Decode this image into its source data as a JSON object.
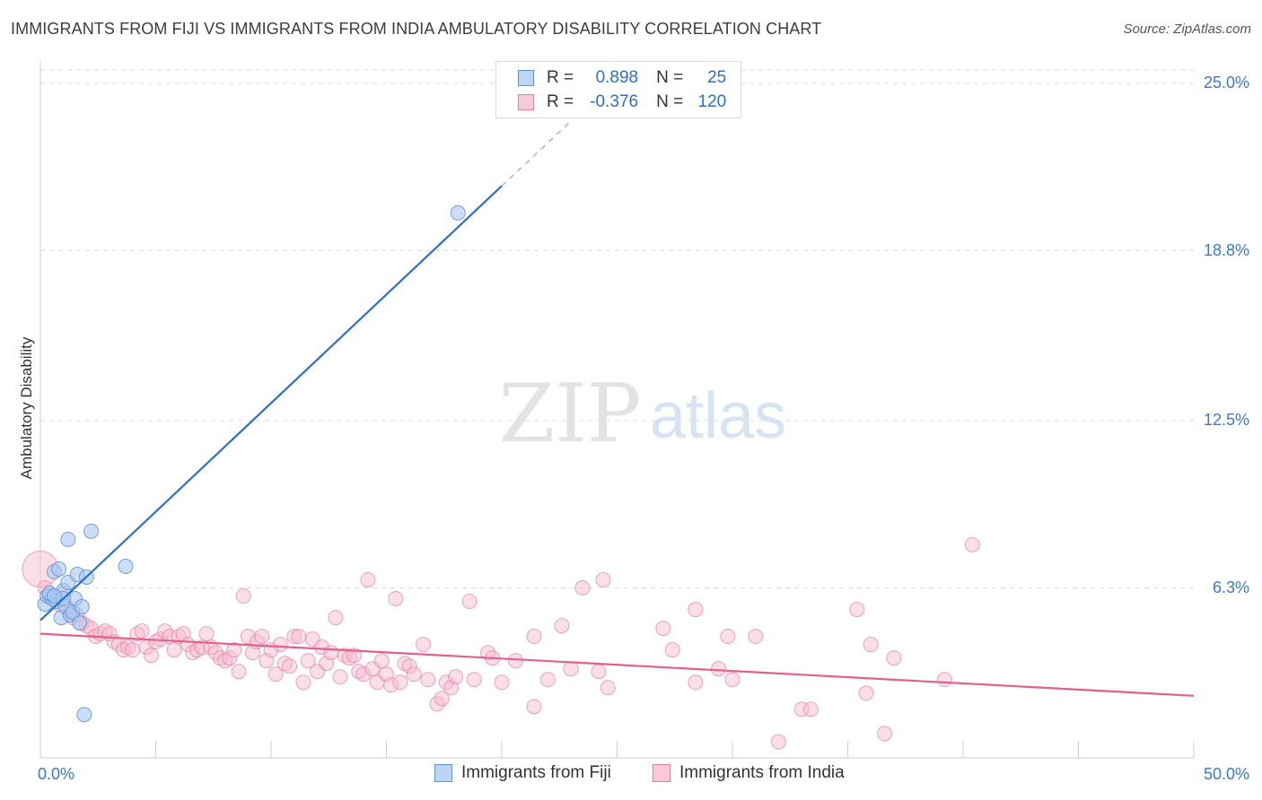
{
  "title": "IMMIGRANTS FROM FIJI VS IMMIGRANTS FROM INDIA AMBULATORY DISABILITY CORRELATION CHART",
  "source": "Source: ZipAtlas.com",
  "watermark": {
    "zip": "ZIP",
    "atlas": "atlas"
  },
  "colors": {
    "fiji_fill": "#a9c8f0",
    "fiji_stroke": "#5b93d8",
    "fiji_line": "#2e6fce",
    "india_fill": "#f6b8cc",
    "india_stroke": "#e67fa1",
    "india_line": "#e0608e",
    "value_text": "#2e6fce",
    "grid": "#dcdcdc"
  },
  "legend": {
    "rows": [
      {
        "r_label": "R =",
        "r_value": "0.898",
        "n_label": "N =",
        "n_value": "25"
      },
      {
        "r_label": "R =",
        "r_value": "-0.376",
        "n_label": "N =",
        "n_value": "120"
      }
    ]
  },
  "bottom_legend": {
    "fiji": "Immigrants from Fiji",
    "india": "Immigrants from India"
  },
  "chart_data": {
    "type": "scatter",
    "title": "IMMIGRANTS FROM FIJI VS IMMIGRANTS FROM INDIA AMBULATORY DISABILITY CORRELATION CHART",
    "xlabel": "",
    "ylabel": "Ambulatory Disability",
    "xlim": [
      0,
      50
    ],
    "ylim": [
      0,
      25.5
    ],
    "x_tick_labels": [
      "0.0%",
      "50.0%"
    ],
    "y_ticks": [
      6.3,
      12.5,
      18.8,
      25.0
    ],
    "y_tick_labels": [
      "6.3%",
      "12.5%",
      "18.8%",
      "25.0%"
    ],
    "grid": true,
    "legend_position": "top-center",
    "series": [
      {
        "name": "Immigrants from Fiji",
        "r": 0.898,
        "n": 25,
        "trend": {
          "x0": 0.0,
          "y0": 5.1,
          "x1": 20.0,
          "y1": 21.2,
          "dash_x1": 23.0,
          "dash_y1": 23.6
        },
        "points": [
          [
            0.2,
            5.7
          ],
          [
            0.3,
            6.0
          ],
          [
            0.5,
            5.9
          ],
          [
            0.6,
            6.9
          ],
          [
            0.7,
            5.8
          ],
          [
            0.8,
            7.0
          ],
          [
            0.9,
            5.2
          ],
          [
            1.0,
            6.2
          ],
          [
            1.1,
            5.6
          ],
          [
            1.2,
            6.5
          ],
          [
            1.3,
            5.3
          ],
          [
            1.4,
            5.4
          ],
          [
            1.5,
            5.9
          ],
          [
            1.6,
            6.8
          ],
          [
            1.7,
            5.0
          ],
          [
            1.8,
            5.6
          ],
          [
            2.0,
            6.7
          ],
          [
            1.2,
            8.1
          ],
          [
            2.2,
            8.4
          ],
          [
            3.7,
            7.1
          ],
          [
            18.1,
            20.2
          ],
          [
            1.9,
            1.6
          ],
          [
            0.4,
            6.1
          ],
          [
            1.0,
            5.9
          ],
          [
            0.6,
            6.0
          ]
        ]
      },
      {
        "name": "Immigrants from India",
        "r": -0.376,
        "n": 120,
        "trend": {
          "x0": 0.0,
          "y0": 4.6,
          "x1": 50.0,
          "y1": 2.3
        },
        "points": [
          [
            0.0,
            7.0
          ],
          [
            0.2,
            6.3
          ],
          [
            0.4,
            6.0
          ],
          [
            0.6,
            6.0
          ],
          [
            0.8,
            5.7
          ],
          [
            1.0,
            6.1
          ],
          [
            1.2,
            5.5
          ],
          [
            1.4,
            5.2
          ],
          [
            1.6,
            5.3
          ],
          [
            1.8,
            5.0
          ],
          [
            2.0,
            4.9
          ],
          [
            2.2,
            4.8
          ],
          [
            2.4,
            4.5
          ],
          [
            2.6,
            4.6
          ],
          [
            2.8,
            4.7
          ],
          [
            3.0,
            4.6
          ],
          [
            3.2,
            4.3
          ],
          [
            3.4,
            4.2
          ],
          [
            3.6,
            4.0
          ],
          [
            3.8,
            4.1
          ],
          [
            4.0,
            4.0
          ],
          [
            4.2,
            4.6
          ],
          [
            4.4,
            4.7
          ],
          [
            4.6,
            4.1
          ],
          [
            4.8,
            3.8
          ],
          [
            5.0,
            4.3
          ],
          [
            5.2,
            4.4
          ],
          [
            5.4,
            4.7
          ],
          [
            5.6,
            4.5
          ],
          [
            5.8,
            4.0
          ],
          [
            6.0,
            4.5
          ],
          [
            6.2,
            4.6
          ],
          [
            6.4,
            4.2
          ],
          [
            6.6,
            3.9
          ],
          [
            6.8,
            4.0
          ],
          [
            7.0,
            4.1
          ],
          [
            7.2,
            4.6
          ],
          [
            7.4,
            4.1
          ],
          [
            7.6,
            3.9
          ],
          [
            7.8,
            3.7
          ],
          [
            8.0,
            3.6
          ],
          [
            8.2,
            3.7
          ],
          [
            8.4,
            4.0
          ],
          [
            8.6,
            3.2
          ],
          [
            8.8,
            6.0
          ],
          [
            9.0,
            4.5
          ],
          [
            9.2,
            3.9
          ],
          [
            9.4,
            4.3
          ],
          [
            9.6,
            4.5
          ],
          [
            9.8,
            3.6
          ],
          [
            10.0,
            4.0
          ],
          [
            10.2,
            3.1
          ],
          [
            10.4,
            4.2
          ],
          [
            10.6,
            3.5
          ],
          [
            10.8,
            3.4
          ],
          [
            11.0,
            4.5
          ],
          [
            11.2,
            4.5
          ],
          [
            11.4,
            2.8
          ],
          [
            11.6,
            3.6
          ],
          [
            11.8,
            4.4
          ],
          [
            12.0,
            3.2
          ],
          [
            12.2,
            4.1
          ],
          [
            12.4,
            3.5
          ],
          [
            12.6,
            3.9
          ],
          [
            12.8,
            5.2
          ],
          [
            13.0,
            3.0
          ],
          [
            13.2,
            3.8
          ],
          [
            13.4,
            3.7
          ],
          [
            13.6,
            3.8
          ],
          [
            13.8,
            3.2
          ],
          [
            14.0,
            3.1
          ],
          [
            14.2,
            6.6
          ],
          [
            14.4,
            3.3
          ],
          [
            14.6,
            2.8
          ],
          [
            14.8,
            3.6
          ],
          [
            15.0,
            3.1
          ],
          [
            15.2,
            2.7
          ],
          [
            15.4,
            5.9
          ],
          [
            15.6,
            2.8
          ],
          [
            15.8,
            3.5
          ],
          [
            16.0,
            3.4
          ],
          [
            16.2,
            3.1
          ],
          [
            16.6,
            4.2
          ],
          [
            16.8,
            2.9
          ],
          [
            17.2,
            2.0
          ],
          [
            17.4,
            2.2
          ],
          [
            17.6,
            2.8
          ],
          [
            17.8,
            2.6
          ],
          [
            18.0,
            3.0
          ],
          [
            18.6,
            5.8
          ],
          [
            18.8,
            2.9
          ],
          [
            19.4,
            3.9
          ],
          [
            19.6,
            3.7
          ],
          [
            20.0,
            2.8
          ],
          [
            20.6,
            3.6
          ],
          [
            21.4,
            1.9
          ],
          [
            21.4,
            4.5
          ],
          [
            22.0,
            2.9
          ],
          [
            22.6,
            4.9
          ],
          [
            23.0,
            3.3
          ],
          [
            23.5,
            6.3
          ],
          [
            24.2,
            3.2
          ],
          [
            24.4,
            6.6
          ],
          [
            24.6,
            2.6
          ],
          [
            27.0,
            4.8
          ],
          [
            27.4,
            4.0
          ],
          [
            28.4,
            2.8
          ],
          [
            28.4,
            5.5
          ],
          [
            29.4,
            3.3
          ],
          [
            29.8,
            4.5
          ],
          [
            30.0,
            2.9
          ],
          [
            31.0,
            4.5
          ],
          [
            32.0,
            0.6
          ],
          [
            33.0,
            1.8
          ],
          [
            33.4,
            1.8
          ],
          [
            35.4,
            5.5
          ],
          [
            35.8,
            2.4
          ],
          [
            36.0,
            4.2
          ],
          [
            36.6,
            0.9
          ],
          [
            37.0,
            3.7
          ],
          [
            39.2,
            2.9
          ],
          [
            40.4,
            7.9
          ]
        ]
      }
    ]
  }
}
